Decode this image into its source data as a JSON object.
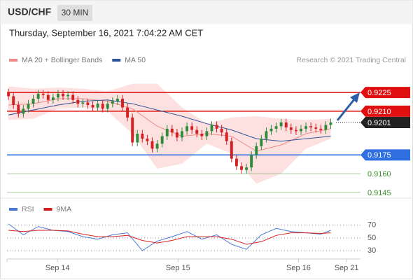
{
  "header": {
    "symbol": "USD/CHF",
    "interval": "30 MIN",
    "datetime": "Thursday, September 16, 2021 7:04:22 AM CET"
  },
  "chart_data": [
    {
      "type": "candlestick",
      "source": "Research © 2021 Trading Central",
      "xlim": [
        -0.3,
        70.3
      ],
      "ylim": [
        0.9141,
        0.9243
      ],
      "up_color": "#2e8b3a",
      "down_color": "#d42020",
      "x": [
        0,
        1,
        2,
        3,
        4,
        5,
        6,
        7,
        8,
        9,
        10,
        11,
        12,
        13,
        14,
        15,
        16,
        17,
        18,
        19,
        20,
        21,
        22,
        23,
        24,
        25,
        26,
        27,
        28,
        29,
        30,
        31,
        32,
        33,
        34,
        35,
        36,
        37,
        38,
        39,
        40,
        41,
        42,
        43,
        44,
        45,
        46,
        47,
        48,
        49,
        50,
        51,
        52,
        53,
        54,
        55,
        56,
        57,
        58,
        59,
        60,
        61,
        62,
        63,
        64,
        65
      ],
      "open": [
        0.9225,
        0.9222,
        0.9215,
        0.9208,
        0.9212,
        0.9216,
        0.922,
        0.9224,
        0.9223,
        0.9219,
        0.9221,
        0.9224,
        0.9222,
        0.9223,
        0.9219,
        0.9216,
        0.9217,
        0.9215,
        0.9213,
        0.9216,
        0.9212,
        0.9216,
        0.9218,
        0.922,
        0.9213,
        0.9205,
        0.9185,
        0.9192,
        0.9188,
        0.9186,
        0.918,
        0.9184,
        0.919,
        0.9196,
        0.9193,
        0.9189,
        0.9194,
        0.9198,
        0.9195,
        0.9192,
        0.919,
        0.9194,
        0.9199,
        0.9196,
        0.9193,
        0.9186,
        0.9172,
        0.9166,
        0.9163,
        0.9165,
        0.9175,
        0.9182,
        0.9188,
        0.9194,
        0.9196,
        0.9198,
        0.9201,
        0.9197,
        0.9195,
        0.9194,
        0.9196,
        0.9198,
        0.9197,
        0.9196,
        0.9195,
        0.9199
      ],
      "high": [
        0.9228,
        0.9225,
        0.9218,
        0.9215,
        0.9219,
        0.9223,
        0.9227,
        0.9227,
        0.9226,
        0.9224,
        0.9227,
        0.9227,
        0.9226,
        0.9226,
        0.9222,
        0.922,
        0.922,
        0.9218,
        0.9219,
        0.9219,
        0.9219,
        0.9221,
        0.9223,
        0.9223,
        0.9216,
        0.9208,
        0.9195,
        0.9195,
        0.9191,
        0.9189,
        0.9187,
        0.9193,
        0.9199,
        0.9199,
        0.9196,
        0.9197,
        0.9201,
        0.9201,
        0.9198,
        0.9195,
        0.9197,
        0.9202,
        0.9202,
        0.9199,
        0.9196,
        0.9189,
        0.9175,
        0.9169,
        0.9168,
        0.9178,
        0.9185,
        0.9191,
        0.9197,
        0.9199,
        0.9201,
        0.9204,
        0.9204,
        0.92,
        0.9198,
        0.9199,
        0.9201,
        0.9201,
        0.92,
        0.9199,
        0.9202,
        0.9204
      ],
      "low": [
        0.9219,
        0.9212,
        0.9205,
        0.9205,
        0.9209,
        0.9213,
        0.9217,
        0.922,
        0.9216,
        0.9216,
        0.9218,
        0.9219,
        0.9219,
        0.9216,
        0.9213,
        0.9213,
        0.9212,
        0.921,
        0.921,
        0.9209,
        0.9209,
        0.9213,
        0.9215,
        0.921,
        0.9202,
        0.9182,
        0.9182,
        0.9185,
        0.9183,
        0.9177,
        0.9177,
        0.9181,
        0.9187,
        0.919,
        0.9186,
        0.9186,
        0.9191,
        0.9192,
        0.9189,
        0.9187,
        0.9187,
        0.9191,
        0.9193,
        0.919,
        0.9183,
        0.9169,
        0.9163,
        0.916,
        0.916,
        0.9162,
        0.9172,
        0.9179,
        0.9185,
        0.9191,
        0.9193,
        0.9195,
        0.9194,
        0.9192,
        0.9191,
        0.9191,
        0.9193,
        0.9194,
        0.9193,
        0.9192,
        0.9192,
        0.9196
      ],
      "close": [
        0.9222,
        0.9215,
        0.9208,
        0.9212,
        0.9216,
        0.922,
        0.9224,
        0.9223,
        0.9219,
        0.9221,
        0.9224,
        0.9222,
        0.9223,
        0.9219,
        0.9216,
        0.9217,
        0.9215,
        0.9213,
        0.9216,
        0.9212,
        0.9216,
        0.9218,
        0.922,
        0.9213,
        0.9205,
        0.9185,
        0.9192,
        0.9188,
        0.9186,
        0.918,
        0.9184,
        0.919,
        0.9196,
        0.9193,
        0.9189,
        0.9194,
        0.9198,
        0.9195,
        0.9192,
        0.919,
        0.9194,
        0.9199,
        0.9196,
        0.9193,
        0.9186,
        0.9172,
        0.9166,
        0.9163,
        0.9165,
        0.9175,
        0.9182,
        0.9188,
        0.9194,
        0.9196,
        0.9198,
        0.9201,
        0.9197,
        0.9195,
        0.9194,
        0.9196,
        0.9198,
        0.9197,
        0.9196,
        0.9195,
        0.9199,
        0.9201
      ],
      "series": [
        {
          "name": "MA 20 + Bollinger Bands",
          "color": "#f08a8a",
          "band_color": "#fde0e0",
          "x": [
            0,
            5,
            10,
            15,
            20,
            25,
            30,
            35,
            40,
            45,
            50,
            55,
            60,
            65
          ],
          "values": [
            0.9215,
            0.9216,
            0.922,
            0.922,
            0.9218,
            0.9212,
            0.9198,
            0.919,
            0.9192,
            0.919,
            0.9178,
            0.9183,
            0.9192,
            0.9196
          ],
          "upper": [
            0.923,
            0.9228,
            0.9229,
            0.9228,
            0.9226,
            0.9232,
            0.9232,
            0.9213,
            0.92,
            0.9205,
            0.9206,
            0.9204,
            0.9203,
            0.9204
          ],
          "lower": [
            0.9203,
            0.9204,
            0.9212,
            0.9213,
            0.921,
            0.9192,
            0.9164,
            0.9168,
            0.9184,
            0.9176,
            0.9152,
            0.916,
            0.918,
            0.9188
          ]
        },
        {
          "name": "MA 50",
          "color": "#2d5496",
          "x": [
            0,
            5,
            10,
            15,
            20,
            25,
            30,
            35,
            40,
            45,
            50,
            55,
            60,
            65
          ],
          "values": [
            0.9207,
            0.9211,
            0.9215,
            0.9218,
            0.9219,
            0.9216,
            0.9211,
            0.9206,
            0.92,
            0.9195,
            0.9188,
            0.9186,
            0.9188,
            0.919
          ]
        }
      ],
      "levels": [
        {
          "value": 0.9225,
          "label": "0.9225",
          "color": "#e01010",
          "boxed": true,
          "dotted": false
        },
        {
          "value": 0.921,
          "label": "0.9210",
          "color": "#e01010",
          "boxed": true,
          "dotted": false
        },
        {
          "value": 0.9201,
          "label": "0.9201",
          "color": "#222222",
          "boxed": true,
          "dotted": true
        },
        {
          "value": 0.9175,
          "label": "0.9175",
          "color": "#2f6fe0",
          "boxed": true,
          "dotted": false
        },
        {
          "value": 0.916,
          "label": "0.9160",
          "color": "#3a8f2a",
          "boxed": false,
          "dotted": false
        },
        {
          "value": 0.9145,
          "label": "0.9145",
          "color": "#3a8f2a",
          "boxed": false,
          "dotted": false
        }
      ]
    },
    {
      "type": "line",
      "xlim": [
        -0.3,
        70.3
      ],
      "ylim": [
        19,
        94
      ],
      "yticks": [
        30,
        50,
        70
      ],
      "xticks": [
        {
          "value": 9.9,
          "label": "Sep 14"
        },
        {
          "value": 34.2,
          "label": "Sep 15"
        },
        {
          "value": 58.5,
          "label": "Sep 16"
        },
        {
          "value": 68.2,
          "label": "Sep 21"
        }
      ],
      "series": [
        {
          "name": "RSI",
          "color": "#4a78d6",
          "x": [
            0,
            3,
            6,
            9,
            12,
            15,
            18,
            21,
            24,
            27,
            30,
            33,
            36,
            39,
            42,
            45,
            48,
            51,
            54,
            57,
            60,
            63,
            65
          ],
          "values": [
            72,
            55,
            68,
            62,
            60,
            52,
            48,
            55,
            58,
            30,
            45,
            52,
            60,
            48,
            55,
            40,
            32,
            55,
            65,
            60,
            58,
            56,
            62
          ]
        },
        {
          "name": "9MA",
          "color": "#d42020",
          "x": [
            0,
            3,
            6,
            9,
            12,
            15,
            18,
            21,
            24,
            27,
            30,
            33,
            36,
            39,
            42,
            45,
            48,
            51,
            54,
            57,
            60,
            63,
            65
          ],
          "values": [
            62,
            60,
            62,
            62,
            61,
            56,
            52,
            52,
            54,
            46,
            42,
            46,
            52,
            52,
            52,
            48,
            40,
            44,
            54,
            58,
            58,
            57,
            58
          ]
        }
      ]
    }
  ]
}
